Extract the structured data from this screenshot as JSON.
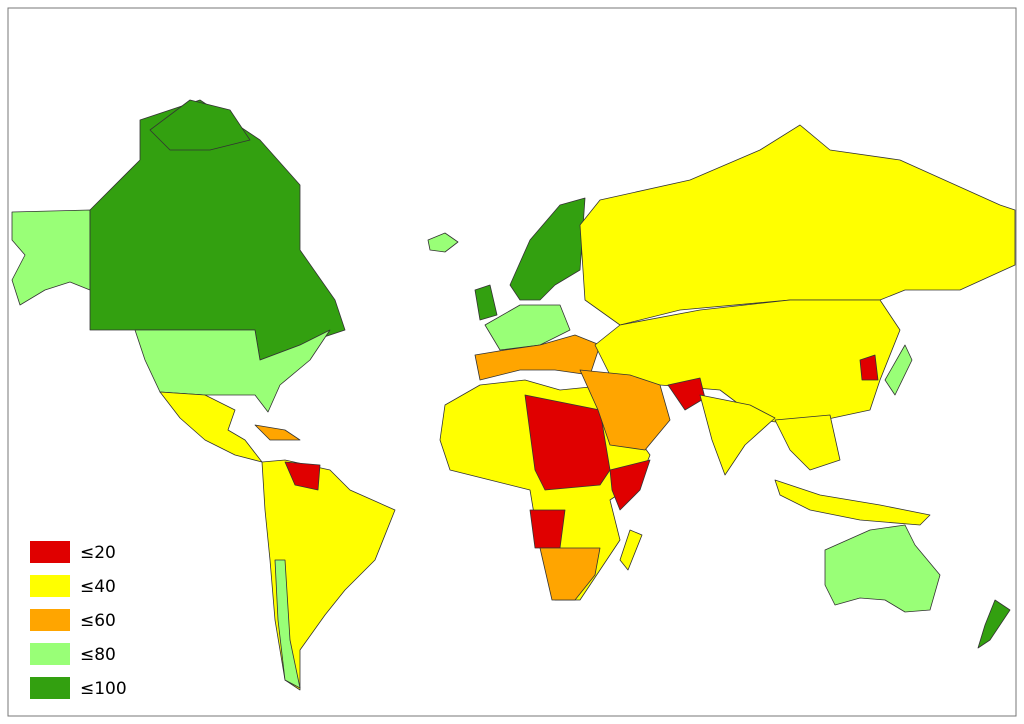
{
  "legend": {
    "items": [
      {
        "label": "≤20",
        "color": "#e00000"
      },
      {
        "label": "≤40",
        "color": "#ffff00"
      },
      {
        "label": "≤60",
        "color": "#ffa500"
      },
      {
        "label": "≤80",
        "color": "#99ff77"
      },
      {
        "label": "≤100",
        "color": "#33a010"
      }
    ]
  }
}
